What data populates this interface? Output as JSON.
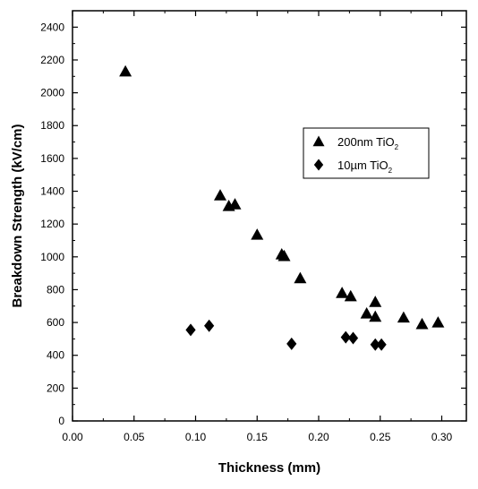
{
  "chart_data": {
    "type": "scatter",
    "title": "",
    "xlabel": "Thickness (mm)",
    "ylabel": "Breakdown Strength (kV/cm)",
    "xlim": [
      0.0,
      0.32
    ],
    "ylim": [
      0,
      2500
    ],
    "xticks": [
      "0.00",
      "0.05",
      "0.10",
      "0.15",
      "0.20",
      "0.25",
      "0.30"
    ],
    "yticks": [
      "0",
      "200",
      "400",
      "600",
      "800",
      "1000",
      "1200",
      "1400",
      "1600",
      "1800",
      "2000",
      "2200",
      "2400"
    ],
    "xtick_values": [
      0.0,
      0.05,
      0.1,
      0.15,
      0.2,
      0.25,
      0.3
    ],
    "ytick_values": [
      0,
      200,
      400,
      600,
      800,
      1000,
      1200,
      1400,
      1600,
      1800,
      2000,
      2200,
      2400
    ],
    "grid": false,
    "legend_position": "upper-right",
    "series": [
      {
        "name_main": "200nm TiO",
        "name_sub": "2",
        "marker": "triangle",
        "color": "#000000",
        "points": [
          [
            0.043,
            2130
          ],
          [
            0.12,
            1375
          ],
          [
            0.127,
            1310
          ],
          [
            0.132,
            1320
          ],
          [
            0.15,
            1135
          ],
          [
            0.17,
            1015
          ],
          [
            0.172,
            1005
          ],
          [
            0.185,
            870
          ],
          [
            0.219,
            780
          ],
          [
            0.226,
            760
          ],
          [
            0.239,
            655
          ],
          [
            0.246,
            725
          ],
          [
            0.246,
            635
          ],
          [
            0.269,
            630
          ],
          [
            0.284,
            590
          ],
          [
            0.297,
            600
          ]
        ]
      },
      {
        "name_main": "10µm TiO",
        "name_sub": "2",
        "marker": "diamond",
        "color": "#000000",
        "points": [
          [
            0.096,
            555
          ],
          [
            0.111,
            580
          ],
          [
            0.178,
            470
          ],
          [
            0.222,
            510
          ],
          [
            0.228,
            505
          ],
          [
            0.246,
            465
          ],
          [
            0.251,
            465
          ]
        ]
      }
    ]
  }
}
